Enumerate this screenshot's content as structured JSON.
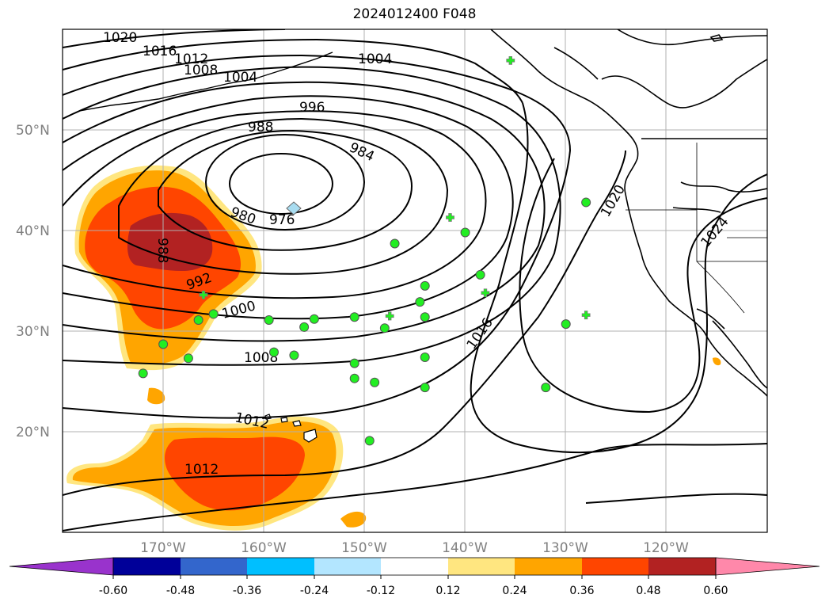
{
  "title": "2024012400 F048",
  "map": {
    "projection": "lat-lon",
    "lon_range": [
      -180,
      -110
    ],
    "lat_range": [
      10,
      60
    ],
    "grid": true,
    "lat_ticks": [
      {
        "label": "20°N",
        "value": 20
      },
      {
        "label": "30°N",
        "value": 30
      },
      {
        "label": "40°N",
        "value": 40
      },
      {
        "label": "50°N",
        "value": 50
      }
    ],
    "lon_ticks": [
      {
        "label": "170°W",
        "value": -170
      },
      {
        "label": "160°W",
        "value": -160
      },
      {
        "label": "150°W",
        "value": -150
      },
      {
        "label": "140°W",
        "value": -140
      },
      {
        "label": "130°W",
        "value": -130
      },
      {
        "label": "120°W",
        "value": -120
      }
    ],
    "contour_labels": [
      {
        "text": "1020",
        "lon": -174,
        "lat": 59.3
      },
      {
        "text": "1016",
        "lon": -170,
        "lat": 58.0
      },
      {
        "text": "1012",
        "lon": -167,
        "lat": 57.3
      },
      {
        "text": "1008",
        "lon": -168,
        "lat": 56.2
      },
      {
        "text": "1004",
        "lon": -163,
        "lat": 55.5
      },
      {
        "text": "1004",
        "lon": -147,
        "lat": 57.6
      },
      {
        "text": "996",
        "lon": -155,
        "lat": 52.3
      },
      {
        "text": "988",
        "lon": -160,
        "lat": 50.5
      },
      {
        "text": "984",
        "lon": -150,
        "lat": 48.0
      },
      {
        "text": "980",
        "lon": -162,
        "lat": 41.5
      },
      {
        "text": "976",
        "lon": -158,
        "lat": 40.8
      },
      {
        "text": "988",
        "lon": -170,
        "lat": 38.3
      },
      {
        "text": "992",
        "lon": -166,
        "lat": 35.2
      },
      {
        "text": "1000",
        "lon": -162,
        "lat": 32.1
      },
      {
        "text": "1008",
        "lon": -160,
        "lat": 27.6
      },
      {
        "text": "1012",
        "lon": -158,
        "lat": 21.0
      },
      {
        "text": "1012",
        "lon": -166,
        "lat": 16.2
      },
      {
        "text": "1016",
        "lon": -138,
        "lat": 29.8
      },
      {
        "text": "1020",
        "lon": -126,
        "lat": 42.8
      },
      {
        "text": "1024",
        "lon": -115,
        "lat": 37.9
      }
    ],
    "low_center": {
      "lon": -157,
      "lat": 42.0
    },
    "observation_markers": [
      {
        "type": "circle",
        "lon": -147,
        "lat": 38.7
      },
      {
        "type": "circle",
        "lon": -140,
        "lat": 39.8
      },
      {
        "type": "circle",
        "lon": -128,
        "lat": 42.8
      },
      {
        "type": "circle",
        "lon": -144,
        "lat": 34.5
      },
      {
        "type": "circle",
        "lon": -138.5,
        "lat": 35.6
      },
      {
        "type": "circle",
        "lon": -144.5,
        "lat": 32.9
      },
      {
        "type": "circle",
        "lon": -144,
        "lat": 31.4
      },
      {
        "type": "circle",
        "lon": -148,
        "lat": 30.3
      },
      {
        "type": "circle",
        "lon": -151,
        "lat": 31.4
      },
      {
        "type": "circle",
        "lon": -155,
        "lat": 31.2
      },
      {
        "type": "circle",
        "lon": -156,
        "lat": 30.4
      },
      {
        "type": "circle",
        "lon": -159.5,
        "lat": 31.1
      },
      {
        "type": "circle",
        "lon": -165,
        "lat": 31.7
      },
      {
        "type": "circle",
        "lon": -166.5,
        "lat": 31.1
      },
      {
        "type": "circle",
        "lon": -170,
        "lat": 28.7
      },
      {
        "type": "circle",
        "lon": -167.5,
        "lat": 27.3
      },
      {
        "type": "circle",
        "lon": -172,
        "lat": 25.8
      },
      {
        "type": "circle",
        "lon": -159,
        "lat": 27.9
      },
      {
        "type": "circle",
        "lon": -157,
        "lat": 27.6
      },
      {
        "type": "circle",
        "lon": -151,
        "lat": 26.8
      },
      {
        "type": "circle",
        "lon": -151,
        "lat": 25.3
      },
      {
        "type": "circle",
        "lon": -149,
        "lat": 24.9
      },
      {
        "type": "circle",
        "lon": -144,
        "lat": 27.4
      },
      {
        "type": "circle",
        "lon": -144,
        "lat": 24.4
      },
      {
        "type": "circle",
        "lon": -149.5,
        "lat": 19.1
      },
      {
        "type": "circle",
        "lon": -130,
        "lat": 30.7
      },
      {
        "type": "circle",
        "lon": -132,
        "lat": 24.4
      },
      {
        "type": "cross",
        "lon": -141.5,
        "lat": 41.3
      },
      {
        "type": "cross",
        "lon": -138,
        "lat": 33.8
      },
      {
        "type": "cross",
        "lon": -147.5,
        "lat": 31.5
      },
      {
        "type": "cross",
        "lon": -128,
        "lat": 31.6
      },
      {
        "type": "cross",
        "lon": -166,
        "lat": 33.6
      },
      {
        "type": "cross",
        "lon": -135.5,
        "lat": 56.9
      }
    ]
  },
  "colorbar": {
    "colors": [
      "#9933cc",
      "#000099",
      "#3366cc",
      "#00bfff",
      "#b3e6ff",
      "#ffffff",
      "#ffe680",
      "#ffa500",
      "#ff4500",
      "#b22222",
      "#ff88aa"
    ],
    "tick_labels": [
      "-0.60",
      "-0.48",
      "-0.36",
      "-0.24",
      "-0.12",
      "0.12",
      "0.24",
      "0.36",
      "0.48",
      "0.60"
    ],
    "extend": "both"
  }
}
